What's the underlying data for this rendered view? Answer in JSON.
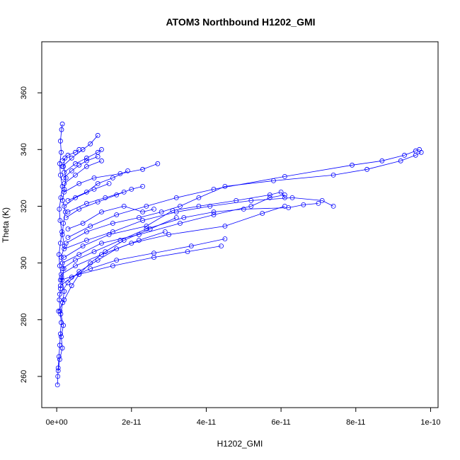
{
  "chart_data": {
    "type": "line",
    "title": "ATOM3 Northbound H1202_GMI",
    "xlabel": "H1202_GMI",
    "ylabel": "Theta (K)",
    "xlim": [
      -4e-12,
      1.02e-10
    ],
    "ylim": [
      249,
      378
    ],
    "x_ticks": [
      0,
      2e-11,
      4e-11,
      6e-11,
      8e-11,
      1e-10
    ],
    "x_tick_labels": [
      "0e+00",
      "2e-11",
      "4e-11",
      "6e-11",
      "8e-11",
      "1e-10"
    ],
    "y_ticks": [
      260,
      280,
      300,
      320,
      340,
      360
    ],
    "y_tick_labels": [
      "260",
      "280",
      "300",
      "320",
      "340",
      "360"
    ],
    "grid": false,
    "series_color": "#0000ff",
    "series": [
      {
        "points": [
          [
            2e-13,
            257
          ],
          [
            3e-13,
            260
          ],
          [
            4e-13,
            263
          ],
          [
            6e-13,
            267
          ],
          [
            8e-13,
            271
          ],
          [
            1e-12,
            275
          ],
          [
            1.2e-12,
            279
          ],
          [
            9e-13,
            283
          ],
          [
            7e-13,
            287
          ],
          [
            1e-12,
            291
          ],
          [
            1.3e-12,
            295
          ],
          [
            8e-13,
            299
          ],
          [
            6e-13,
            303
          ],
          [
            1e-12,
            307
          ],
          [
            1.4e-12,
            311
          ],
          [
            9e-13,
            315
          ],
          [
            7e-13,
            319
          ],
          [
            1.1e-12,
            323
          ],
          [
            1.5e-12,
            327
          ],
          [
            1e-12,
            331
          ],
          [
            8e-13,
            335
          ],
          [
            1.2e-12,
            339
          ],
          [
            1e-12,
            343
          ],
          [
            1.3e-12,
            347
          ],
          [
            1.5e-12,
            349
          ]
        ]
      },
      {
        "points": [
          [
            4e-13,
            262
          ],
          [
            8e-13,
            266
          ],
          [
            1.5e-12,
            270
          ],
          [
            1.2e-12,
            274
          ],
          [
            1.8e-12,
            278
          ],
          [
            1.1e-12,
            282
          ],
          [
            1.6e-12,
            286
          ],
          [
            2e-12,
            290
          ],
          [
            1.4e-12,
            294
          ],
          [
            1.9e-12,
            298
          ],
          [
            1.2e-12,
            302
          ],
          [
            2.1e-12,
            306
          ],
          [
            1.5e-12,
            310
          ],
          [
            1.8e-12,
            314
          ],
          [
            2.3e-12,
            318
          ],
          [
            1.6e-12,
            322
          ],
          [
            2e-12,
            326
          ],
          [
            2.5e-12,
            330
          ],
          [
            1.8e-12,
            334
          ],
          [
            2.2e-12,
            337
          ]
        ]
      },
      {
        "points": [
          [
            5e-13,
            283
          ],
          [
            2e-12,
            287
          ],
          [
            4e-12,
            292
          ],
          [
            6e-12,
            296
          ],
          [
            9e-12,
            300
          ],
          [
            1.3e-11,
            304
          ],
          [
            1.8e-11,
            308
          ],
          [
            2.5e-11,
            312
          ],
          [
            3.2e-11,
            316
          ]
        ]
      },
      {
        "points": [
          [
            8e-13,
            289
          ],
          [
            3e-12,
            293
          ],
          [
            6e-12,
            297
          ],
          [
            1.1e-11,
            301
          ],
          [
            1.6e-11,
            305
          ],
          [
            2.2e-11,
            308
          ],
          [
            2.9e-11,
            311
          ]
        ]
      },
      {
        "points": [
          [
            1e-12,
            292
          ],
          [
            4e-12,
            295
          ],
          [
            9e-12,
            298
          ],
          [
            1.6e-11,
            301
          ],
          [
            2.6e-11,
            303.5
          ],
          [
            3.6e-11,
            306
          ],
          [
            4.5e-11,
            308.5
          ]
        ]
      },
      {
        "points": [
          [
            1e-12,
            294
          ],
          [
            6e-12,
            296
          ],
          [
            1.5e-11,
            299
          ],
          [
            2.6e-11,
            302
          ],
          [
            3.5e-11,
            304
          ],
          [
            4.4e-11,
            306
          ]
        ]
      },
      {
        "points": [
          [
            1.2e-12,
            296
          ],
          [
            5e-12,
            299
          ],
          [
            1.2e-11,
            303
          ],
          [
            2e-11,
            307
          ],
          [
            3e-11,
            310
          ],
          [
            4.5e-11,
            313
          ],
          [
            5.5e-11,
            317.5
          ],
          [
            6.1e-11,
            320
          ]
        ]
      },
      {
        "points": [
          [
            1.5e-12,
            298
          ],
          [
            5e-12,
            301
          ],
          [
            1e-11,
            304
          ],
          [
            1.7e-11,
            308
          ],
          [
            2.4e-11,
            312
          ],
          [
            3.4e-11,
            316
          ],
          [
            4.2e-11,
            318
          ],
          [
            5e-11,
            319
          ],
          [
            6.2e-11,
            319.5
          ],
          [
            6.6e-11,
            320.5
          ],
          [
            7e-11,
            321
          ]
        ]
      },
      {
        "points": [
          [
            1.5e-12,
            300
          ],
          [
            6e-12,
            303
          ],
          [
            1.2e-11,
            307
          ],
          [
            2.2e-11,
            310
          ],
          [
            3.3e-11,
            314
          ],
          [
            4.2e-11,
            317
          ],
          [
            5.2e-11,
            320
          ],
          [
            5.7e-11,
            323
          ],
          [
            6.1e-11,
            324
          ]
        ]
      },
      {
        "points": [
          [
            2e-12,
            302
          ],
          [
            7e-12,
            306
          ],
          [
            1.4e-11,
            310
          ],
          [
            2.4e-11,
            313
          ],
          [
            3.1e-11,
            318.5
          ],
          [
            3.8e-11,
            320
          ],
          [
            4.8e-11,
            322
          ],
          [
            5.7e-11,
            324
          ],
          [
            6e-11,
            325
          ],
          [
            6.1e-11,
            323
          ]
        ]
      },
      {
        "points": [
          [
            2e-12,
            305
          ],
          [
            8e-12,
            308
          ],
          [
            1.5e-11,
            311
          ],
          [
            2.3e-11,
            315
          ],
          [
            3.2e-11,
            318
          ],
          [
            4.1e-11,
            320
          ],
          [
            5.2e-11,
            322
          ],
          [
            6.3e-11,
            323
          ],
          [
            7.1e-11,
            322
          ],
          [
            7.4e-11,
            320
          ]
        ]
      },
      {
        "points": [
          [
            2.5e-12,
            307
          ],
          [
            8e-12,
            311
          ],
          [
            1.5e-11,
            314
          ],
          [
            2.2e-11,
            316
          ],
          [
            2.8e-11,
            318
          ],
          [
            3.3e-11,
            320
          ],
          [
            3.8e-11,
            323
          ],
          [
            4.5e-11,
            327
          ],
          [
            5.8e-11,
            329
          ],
          [
            7.4e-11,
            331
          ],
          [
            8.3e-11,
            333
          ],
          [
            9.2e-11,
            336
          ],
          [
            9.6e-11,
            338
          ],
          [
            9.75e-11,
            339
          ]
        ]
      },
      {
        "points": [
          [
            3e-12,
            309
          ],
          [
            9e-12,
            313
          ],
          [
            1.6e-11,
            317
          ],
          [
            2.4e-11,
            320
          ],
          [
            3.2e-11,
            323
          ],
          [
            4.2e-11,
            326
          ],
          [
            6.1e-11,
            330.5
          ],
          [
            7.9e-11,
            334.5
          ],
          [
            8.7e-11,
            336
          ],
          [
            9.3e-11,
            338
          ],
          [
            9.6e-11,
            339.5
          ],
          [
            9.7e-11,
            340
          ]
        ]
      },
      {
        "points": [
          [
            3e-12,
            312
          ],
          [
            7e-12,
            314
          ],
          [
            1.2e-11,
            318
          ],
          [
            1.8e-11,
            320
          ],
          [
            2.3e-11,
            318
          ],
          [
            2.6e-11,
            319
          ]
        ]
      },
      {
        "points": [
          [
            2.5e-12,
            316
          ],
          [
            6e-12,
            319
          ],
          [
            1.1e-11,
            321.5
          ],
          [
            1.6e-11,
            324
          ],
          [
            2e-11,
            326
          ],
          [
            2.3e-11,
            327
          ]
        ]
      },
      {
        "points": [
          [
            3e-12,
            318
          ],
          [
            8e-12,
            321
          ],
          [
            1.3e-11,
            323
          ],
          [
            1.8e-11,
            325
          ]
        ]
      },
      {
        "points": [
          [
            2e-12,
            320
          ],
          [
            5e-12,
            323
          ],
          [
            1e-11,
            326
          ],
          [
            1.4e-11,
            328
          ]
        ]
      },
      {
        "points": [
          [
            3e-12,
            322
          ],
          [
            8e-12,
            325
          ],
          [
            1.1e-11,
            328
          ],
          [
            1.5e-11,
            330
          ],
          [
            1.9e-11,
            332.5
          ]
        ]
      },
      {
        "points": [
          [
            2e-12,
            325
          ],
          [
            6e-12,
            328
          ],
          [
            1e-11,
            330
          ],
          [
            1.7e-11,
            331.5
          ],
          [
            2.3e-11,
            333
          ],
          [
            2.7e-11,
            335
          ]
        ]
      },
      {
        "points": [
          [
            2e-12,
            328
          ],
          [
            5e-12,
            331
          ],
          [
            8e-12,
            334
          ],
          [
            1.2e-11,
            336
          ]
        ]
      },
      {
        "points": [
          [
            2e-12,
            332
          ],
          [
            5e-12,
            335
          ],
          [
            8e-12,
            337
          ],
          [
            1.1e-11,
            339
          ],
          [
            1.2e-11,
            340
          ]
        ]
      },
      {
        "points": [
          [
            1.5e-12,
            334
          ],
          [
            4e-12,
            337
          ],
          [
            7e-12,
            340
          ],
          [
            9e-12,
            342
          ],
          [
            1.1e-11,
            345
          ]
        ]
      },
      {
        "points": [
          [
            1.8e-12,
            330
          ],
          [
            4e-12,
            332.5
          ],
          [
            6e-12,
            334.5
          ],
          [
            8e-12,
            336
          ],
          [
            1.1e-11,
            337.5
          ]
        ]
      },
      {
        "points": [
          [
            1.5e-12,
            336
          ],
          [
            3e-12,
            338
          ],
          [
            5e-12,
            339
          ],
          [
            6e-12,
            340
          ]
        ]
      }
    ]
  }
}
